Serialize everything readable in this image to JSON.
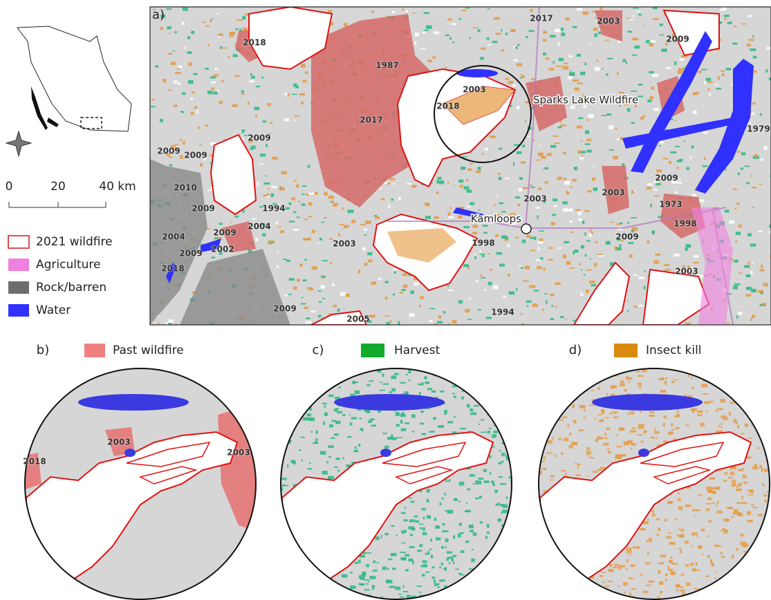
{
  "panel_a": {
    "label": "a)",
    "places": [
      "Sparks Lake Wildfire",
      "Kamloops"
    ],
    "fire_years": [
      "2018",
      "1987",
      "2017",
      "2003",
      "2009",
      "2003",
      "2018",
      "2017",
      "1979",
      "2009",
      "2009",
      "2009",
      "2010",
      "2009",
      "1994",
      "2003",
      "2003",
      "2009",
      "1973",
      "1998",
      "2009",
      "2004",
      "2004",
      "2009",
      "2002",
      "2003",
      "1998",
      "2018",
      "2009",
      "2003",
      "2009",
      "2005",
      "1994"
    ]
  },
  "scale_bar": {
    "labels": [
      "0",
      "20",
      "40 km"
    ]
  },
  "legend": {
    "items": [
      "2021 wildfire",
      "Agriculture",
      "Rock/barren",
      "Water"
    ]
  },
  "panel_b": {
    "label": "b)",
    "legend": "Past wildfire",
    "fire_years": [
      "2003",
      "2018",
      "2003"
    ]
  },
  "panel_c": {
    "label": "c)",
    "legend": "Harvest"
  },
  "panel_d": {
    "label": "d)",
    "legend": "Insect kill"
  }
}
